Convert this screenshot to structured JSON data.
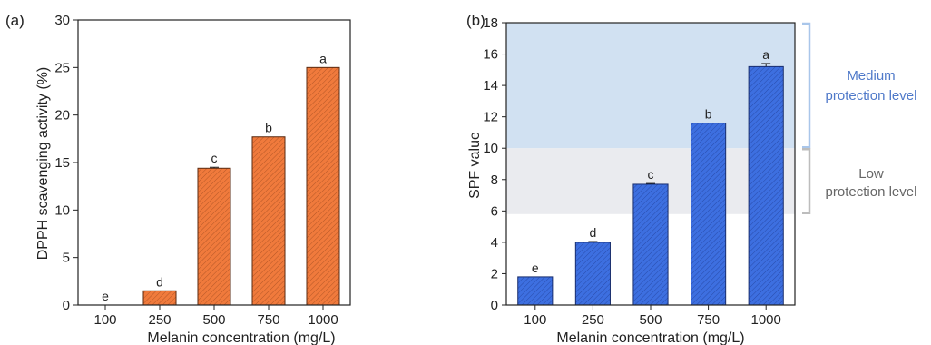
{
  "chart_data": [
    {
      "panel_label": "(a)",
      "type": "bar",
      "categories": [
        "100",
        "250",
        "500",
        "750",
        "1000"
      ],
      "values": [
        0,
        1.5,
        14.4,
        17.7,
        25.0
      ],
      "errors": [
        0,
        0,
        0.1,
        0,
        0
      ],
      "significance_letters": [
        "e",
        "d",
        "c",
        "b",
        "a"
      ],
      "xlabel": "Melanin concentration (mg/L)",
      "ylabel": "DPPH scavenging activity (%)",
      "ylim": [
        0,
        30
      ],
      "yticks": [
        0,
        5,
        10,
        15,
        20,
        25,
        30
      ],
      "bar_color": "#f07a3c",
      "bar_edge": "#5a2a10",
      "hatch": "diagonal",
      "grid": false
    },
    {
      "panel_label": "(b)",
      "type": "bar",
      "categories": [
        "100",
        "250",
        "500",
        "750",
        "1000"
      ],
      "values": [
        1.8,
        4.0,
        7.7,
        11.6,
        15.2
      ],
      "errors": [
        0,
        0.05,
        0.05,
        0,
        0.2
      ],
      "significance_letters": [
        "e",
        "d",
        "c",
        "b",
        "a"
      ],
      "xlabel": "Melanin concentration (mg/L)",
      "ylabel": "SPF value",
      "ylim": [
        0,
        18
      ],
      "yticks": [
        0,
        2,
        4,
        6,
        8,
        10,
        12,
        14,
        16,
        18
      ],
      "bar_color": "#3d6fe0",
      "bar_edge": "#1a2f6e",
      "hatch": "diagonal",
      "grid": false,
      "bands": [
        {
          "label_line1": "Medium",
          "label_line2": "protection level",
          "from": 10,
          "to": 18,
          "color": "#c9dcf0",
          "bracket_color": "#a9c6ea",
          "text_color": "#4f79c9"
        },
        {
          "label_line1": "Low",
          "label_line2": "protection level",
          "from": 5.8,
          "to": 10,
          "color": "#e6e8ec",
          "bracket_color": "#bdbdbd",
          "text_color": "#666666"
        }
      ]
    }
  ]
}
